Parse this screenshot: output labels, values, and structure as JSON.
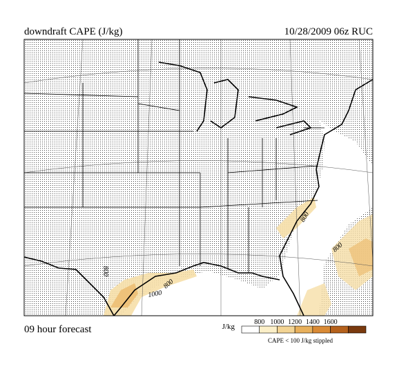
{
  "header": {
    "title": "downdraft CAPE (J/kg)",
    "valid_time": "10/28/2009  06z  RUC"
  },
  "footer": {
    "forecast": "09 hour forecast"
  },
  "legend": {
    "unit": "J/kg",
    "ticks": [
      800,
      1000,
      1200,
      1400,
      1600
    ],
    "colors": [
      "#ffffff",
      "#fbefc8",
      "#f3d494",
      "#e8b05c",
      "#d98a35",
      "#b5611c",
      "#7a3a0e"
    ],
    "note": "CAPE < 100 J/kg stippled"
  },
  "contour_labels": [
    "800",
    "800",
    "1000",
    "800",
    "800"
  ]
}
